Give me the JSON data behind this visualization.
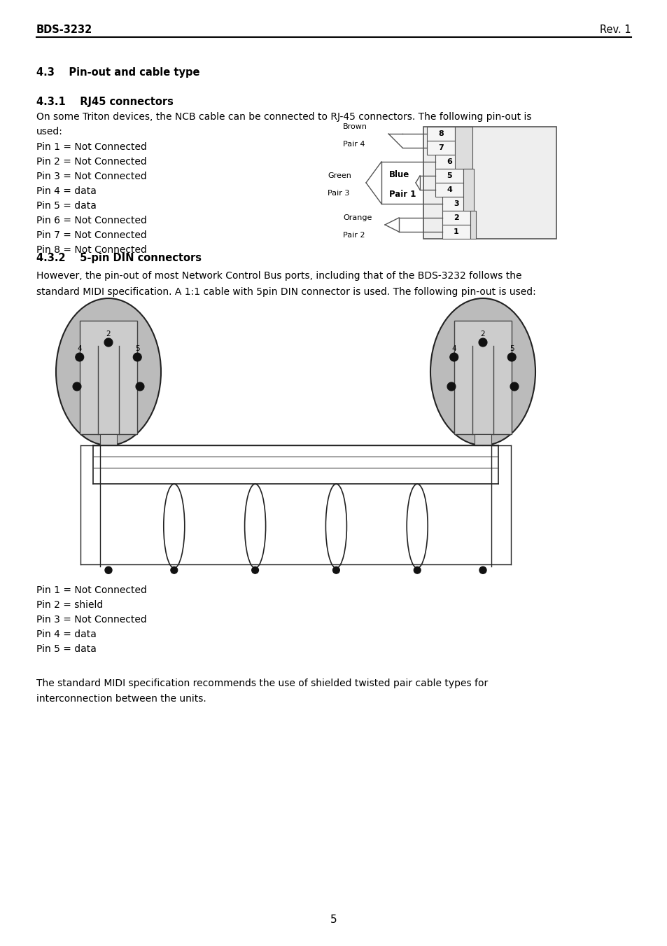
{
  "header_left": "BDS-3232",
  "header_right": "Rev. 1",
  "section_title": "4.3    Pin-out and cable type",
  "subsection1_title": "4.3.1    RJ45 connectors",
  "subsection1_body1": "On some Triton devices, the NCB cable can be connected to RJ-45 connectors. The following pin-out is",
  "subsection1_body2": "used:",
  "pin_list_rj45": [
    "Pin 1 = Not Connected",
    "Pin 2 = Not Connected",
    "Pin 3 = Not Connected",
    "Pin 4 = data",
    "Pin 5 = data",
    "Pin 6 = Not Connected",
    "Pin 7 = Not Connected",
    "Pin 8 = Not Connected"
  ],
  "subsection2_title": "4.3.2    5-pin DIN connectors",
  "subsection2_body1": "However, the pin-out of most Network Control Bus ports, including that of the BDS-3232 follows the",
  "subsection2_body2": "standard MIDI specification. A 1:1 cable with 5pin DIN connector is used. The following pin-out is used:",
  "pin_list_din": [
    "Pin 1 = Not Connected",
    "Pin 2 = shield",
    "Pin 3 = Not Connected",
    "Pin 4 = data",
    "Pin 5 = data"
  ],
  "footer_body": "The standard MIDI specification recommends the use of shielded twisted pair cable types for",
  "footer_body2": "interconnection between the units.",
  "page_number": "5",
  "bg_color": "#ffffff",
  "text_color": "#000000"
}
